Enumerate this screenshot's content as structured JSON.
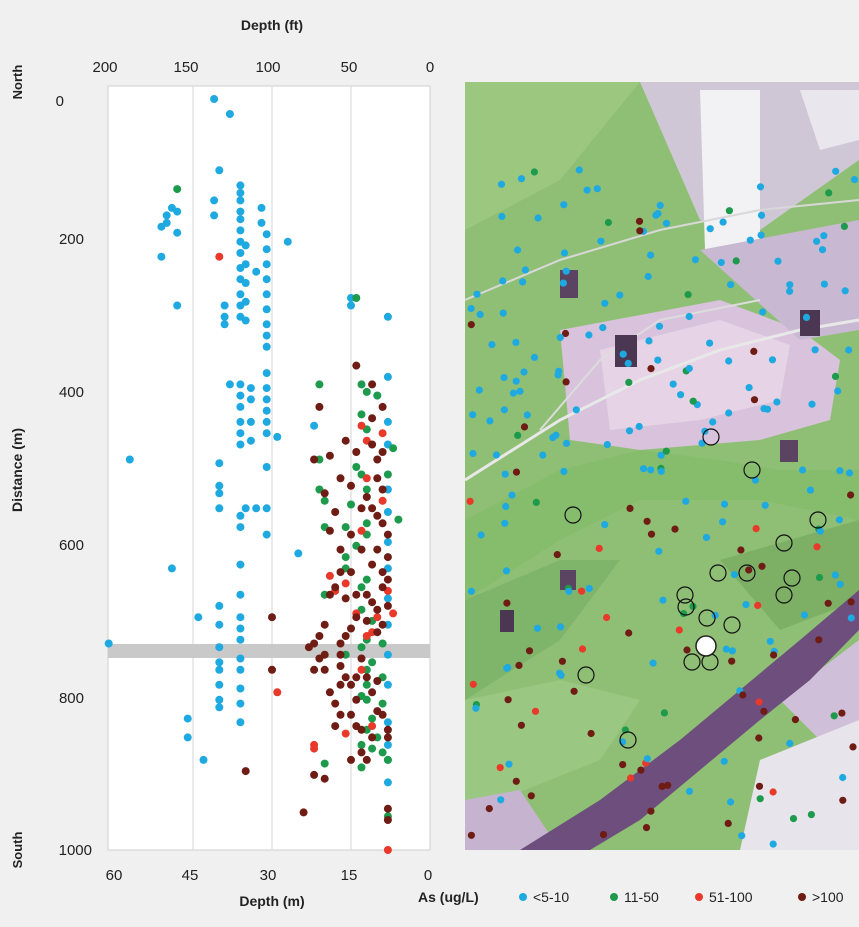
{
  "chart_data": {
    "type": "scatter",
    "title": "",
    "top_axis": {
      "label": "Depth (ft)",
      "ticks": [
        "200",
        "150",
        "100",
        "50",
        "0"
      ],
      "values": [
        200,
        150,
        100,
        50,
        0
      ]
    },
    "bottom_axis": {
      "label": "Depth (m)",
      "ticks": [
        "60",
        "45",
        "30",
        "15",
        "0"
      ],
      "values": [
        60,
        45,
        30,
        15,
        0
      ],
      "range": [
        60,
        0
      ]
    },
    "y_axis": {
      "label": "Distance (m)",
      "ticks": [
        "0",
        "200",
        "400",
        "600",
        "800",
        "1000"
      ],
      "values": [
        0,
        200,
        400,
        600,
        800,
        1000
      ],
      "range": [
        0,
        1000
      ],
      "top_label": "North",
      "bottom_label": "South"
    },
    "gridlines_x": [
      45,
      30,
      15
    ],
    "reference_band_y": 735,
    "legend": {
      "title": "As (ug/L)",
      "entries": [
        {
          "label": "<5-10",
          "color": "#1fa9e1"
        },
        {
          "label": "11-50",
          "color": "#1d9a4b"
        },
        {
          "label": "51-100",
          "color": "#e8392a"
        },
        {
          "label": ">100",
          "color": "#6e1c14"
        }
      ]
    },
    "series": [
      {
        "name": "<5-10",
        "color": "#1fa9e1",
        "points": [
          [
            41,
            0
          ],
          [
            38,
            20
          ],
          [
            40,
            95
          ],
          [
            49,
            145
          ],
          [
            48,
            150
          ],
          [
            50,
            155
          ],
          [
            50,
            165
          ],
          [
            51,
            170
          ],
          [
            48,
            178
          ],
          [
            41,
            155
          ],
          [
            41,
            135
          ],
          [
            36,
            115
          ],
          [
            36,
            125
          ],
          [
            36,
            135
          ],
          [
            36,
            150
          ],
          [
            36,
            160
          ],
          [
            36,
            175
          ],
          [
            36,
            190
          ],
          [
            36,
            205
          ],
          [
            36,
            225
          ],
          [
            36,
            240
          ],
          [
            36,
            260
          ],
          [
            36,
            275
          ],
          [
            36,
            290
          ],
          [
            35,
            195
          ],
          [
            35,
            220
          ],
          [
            35,
            245
          ],
          [
            35,
            270
          ],
          [
            35,
            295
          ],
          [
            32,
            145
          ],
          [
            32,
            165
          ],
          [
            31,
            180
          ],
          [
            31,
            200
          ],
          [
            31,
            220
          ],
          [
            31,
            240
          ],
          [
            31,
            260
          ],
          [
            31,
            280
          ],
          [
            31,
            300
          ],
          [
            31,
            315
          ],
          [
            31,
            330
          ],
          [
            33,
            230
          ],
          [
            27,
            190
          ],
          [
            39,
            275
          ],
          [
            39,
            290
          ],
          [
            39,
            300
          ],
          [
            48,
            275
          ],
          [
            51,
            210
          ],
          [
            31,
            365
          ],
          [
            31,
            385
          ],
          [
            31,
            400
          ],
          [
            31,
            415
          ],
          [
            31,
            430
          ],
          [
            31,
            445
          ],
          [
            36,
            380
          ],
          [
            36,
            395
          ],
          [
            36,
            410
          ],
          [
            36,
            430
          ],
          [
            36,
            445
          ],
          [
            36,
            460
          ],
          [
            38,
            380
          ],
          [
            34,
            385
          ],
          [
            34,
            400
          ],
          [
            34,
            430
          ],
          [
            34,
            455
          ],
          [
            29,
            450
          ],
          [
            31,
            490
          ],
          [
            31,
            545
          ],
          [
            31,
            580
          ],
          [
            33,
            545
          ],
          [
            35,
            545
          ],
          [
            36,
            555
          ],
          [
            36,
            570
          ],
          [
            40,
            485
          ],
          [
            40,
            515
          ],
          [
            40,
            525
          ],
          [
            40,
            545
          ],
          [
            57,
            480
          ],
          [
            49,
            625
          ],
          [
            36,
            620
          ],
          [
            36,
            660
          ],
          [
            36,
            690
          ],
          [
            36,
            705
          ],
          [
            36,
            720
          ],
          [
            36,
            745
          ],
          [
            36,
            760
          ],
          [
            36,
            785
          ],
          [
            36,
            805
          ],
          [
            36,
            830
          ],
          [
            40,
            675
          ],
          [
            40,
            700
          ],
          [
            40,
            730
          ],
          [
            40,
            750
          ],
          [
            40,
            760
          ],
          [
            40,
            780
          ],
          [
            40,
            800
          ],
          [
            40,
            810
          ],
          [
            44,
            690
          ],
          [
            46,
            825
          ],
          [
            46,
            850
          ],
          [
            43,
            880
          ],
          [
            61,
            725
          ],
          [
            25,
            605
          ],
          [
            22,
            435
          ],
          [
            15,
            265
          ],
          [
            15,
            275
          ],
          [
            8,
            290
          ],
          [
            8,
            370
          ],
          [
            10,
            395
          ],
          [
            8,
            430
          ],
          [
            8,
            460
          ],
          [
            8,
            520
          ],
          [
            8,
            550
          ],
          [
            8,
            590
          ],
          [
            8,
            625
          ],
          [
            8,
            665
          ],
          [
            8,
            700
          ],
          [
            8,
            740
          ],
          [
            8,
            780
          ],
          [
            8,
            830
          ],
          [
            8,
            860
          ],
          [
            8,
            880
          ],
          [
            8,
            910
          ]
        ]
      },
      {
        "name": "11-50",
        "color": "#1d9a4b",
        "points": [
          [
            48,
            120
          ],
          [
            14,
            265
          ],
          [
            21,
            380
          ],
          [
            13,
            380
          ],
          [
            12,
            390
          ],
          [
            10,
            395
          ],
          [
            13,
            420
          ],
          [
            12,
            440
          ],
          [
            21,
            480
          ],
          [
            14,
            490
          ],
          [
            13,
            500
          ],
          [
            12,
            520
          ],
          [
            8,
            500
          ],
          [
            21,
            520
          ],
          [
            20,
            535
          ],
          [
            15,
            540
          ],
          [
            7,
            465
          ],
          [
            6,
            560
          ],
          [
            12,
            565
          ],
          [
            16,
            570
          ],
          [
            12,
            580
          ],
          [
            20,
            570
          ],
          [
            14,
            595
          ],
          [
            16,
            610
          ],
          [
            16,
            625
          ],
          [
            12,
            640
          ],
          [
            13,
            650
          ],
          [
            20,
            660
          ],
          [
            13,
            680
          ],
          [
            11,
            695
          ],
          [
            12,
            720
          ],
          [
            9,
            725
          ],
          [
            13,
            730
          ],
          [
            16,
            740
          ],
          [
            11,
            750
          ],
          [
            12,
            760
          ],
          [
            9,
            770
          ],
          [
            12,
            780
          ],
          [
            13,
            795
          ],
          [
            12,
            800
          ],
          [
            9,
            805
          ],
          [
            11,
            825
          ],
          [
            12,
            840
          ],
          [
            10,
            850
          ],
          [
            13,
            860
          ],
          [
            11,
            865
          ],
          [
            13,
            890
          ],
          [
            9,
            870
          ],
          [
            8,
            880
          ],
          [
            8,
            955
          ],
          [
            20,
            885
          ]
        ]
      },
      {
        "name": "51-100",
        "color": "#e8392a",
        "points": [
          [
            40,
            210
          ],
          [
            29,
            790
          ],
          [
            22,
            865
          ],
          [
            19,
            635
          ],
          [
            18,
            655
          ],
          [
            16,
            645
          ],
          [
            13,
            435
          ],
          [
            12,
            455
          ],
          [
            9,
            445
          ],
          [
            12,
            505
          ],
          [
            9,
            535
          ],
          [
            13,
            575
          ],
          [
            8,
            655
          ],
          [
            7,
            685
          ],
          [
            14,
            685
          ],
          [
            12,
            715
          ],
          [
            10,
            690
          ],
          [
            11,
            710
          ],
          [
            13,
            760
          ],
          [
            11,
            835
          ],
          [
            16,
            845
          ],
          [
            8,
            1000
          ],
          [
            22,
            860
          ]
        ]
      },
      {
        "name": ">100",
        "color": "#6e1c14",
        "points": [
          [
            14,
            355
          ],
          [
            11,
            380
          ],
          [
            21,
            410
          ],
          [
            9,
            410
          ],
          [
            11,
            425
          ],
          [
            22,
            480
          ],
          [
            19,
            475
          ],
          [
            16,
            455
          ],
          [
            14,
            470
          ],
          [
            11,
            460
          ],
          [
            9,
            470
          ],
          [
            17,
            505
          ],
          [
            15,
            515
          ],
          [
            12,
            530
          ],
          [
            10,
            480
          ],
          [
            10,
            505
          ],
          [
            9,
            520
          ],
          [
            20,
            525
          ],
          [
            18,
            550
          ],
          [
            13,
            545
          ],
          [
            11,
            545
          ],
          [
            10,
            555
          ],
          [
            9,
            565
          ],
          [
            19,
            575
          ],
          [
            17,
            600
          ],
          [
            15,
            580
          ],
          [
            13,
            600
          ],
          [
            10,
            600
          ],
          [
            11,
            620
          ],
          [
            8,
            580
          ],
          [
            8,
            610
          ],
          [
            15,
            630
          ],
          [
            17,
            630
          ],
          [
            18,
            650
          ],
          [
            19,
            660
          ],
          [
            16,
            665
          ],
          [
            14,
            660
          ],
          [
            14,
            690
          ],
          [
            15,
            705
          ],
          [
            16,
            715
          ],
          [
            17,
            725
          ],
          [
            17,
            740
          ],
          [
            12,
            660
          ],
          [
            11,
            670
          ],
          [
            10,
            680
          ],
          [
            12,
            695
          ],
          [
            10,
            710
          ],
          [
            9,
            630
          ],
          [
            8,
            640
          ],
          [
            9,
            650
          ],
          [
            8,
            675
          ],
          [
            9,
            700
          ],
          [
            20,
            700
          ],
          [
            21,
            715
          ],
          [
            22,
            725
          ],
          [
            23,
            730
          ],
          [
            21,
            745
          ],
          [
            20,
            760
          ],
          [
            17,
            755
          ],
          [
            16,
            770
          ],
          [
            15,
            780
          ],
          [
            14,
            770
          ],
          [
            13,
            745
          ],
          [
            12,
            770
          ],
          [
            11,
            790
          ],
          [
            10,
            815
          ],
          [
            10,
            775
          ],
          [
            14,
            800
          ],
          [
            15,
            820
          ],
          [
            14,
            835
          ],
          [
            13,
            840
          ],
          [
            11,
            850
          ],
          [
            13,
            870
          ],
          [
            15,
            880
          ],
          [
            12,
            880
          ],
          [
            9,
            820
          ],
          [
            8,
            840
          ],
          [
            8,
            850
          ],
          [
            20,
            740
          ],
          [
            22,
            760
          ],
          [
            30,
            690
          ],
          [
            30,
            760
          ],
          [
            35,
            895
          ],
          [
            22,
            900
          ],
          [
            20,
            905
          ],
          [
            24,
            950
          ],
          [
            8,
            945
          ],
          [
            8,
            960
          ],
          [
            17,
            780
          ],
          [
            19,
            790
          ],
          [
            18,
            805
          ],
          [
            17,
            820
          ],
          [
            18,
            835
          ]
        ]
      }
    ]
  },
  "map": {
    "description_labels": []
  }
}
